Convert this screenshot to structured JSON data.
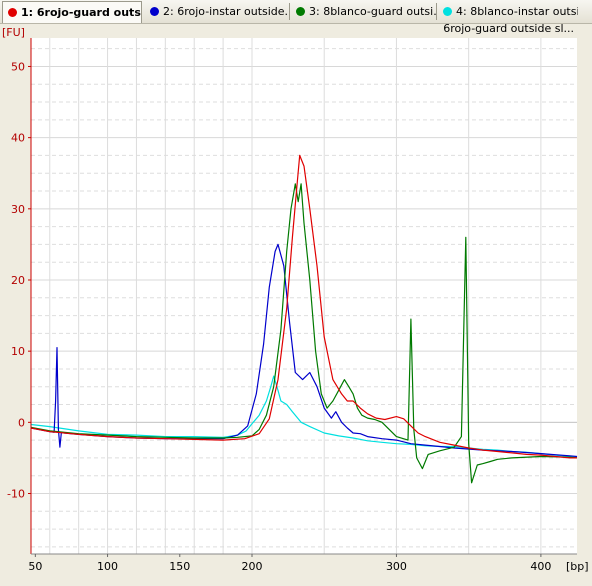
{
  "tabs": [
    {
      "label": "1: 6rojo-guard outs...",
      "color": "#e00000",
      "active": true
    },
    {
      "label": "2: 6rojo-instar outside...",
      "color": "#0000cc",
      "active": false
    },
    {
      "label": "3: 8blanco-guard outsi...",
      "color": "#007a00",
      "active": false
    },
    {
      "label": "4: 8blanco-instar outsi...",
      "color": "#00e0e0",
      "active": false
    }
  ],
  "subtitle": "6rojo-guard outside sl...",
  "chart_data": {
    "type": "line",
    "title": "",
    "ylabel": "[FU]",
    "xlabel": "[bp]",
    "xlim": [
      47,
      425
    ],
    "ylim": [
      -18.5,
      54
    ],
    "x_ticks": [
      50,
      100,
      150,
      200,
      300,
      400
    ],
    "x_tick_labels": [
      "50",
      "100",
      "150",
      "200",
      "300",
      "400"
    ],
    "y_ticks": [
      -10,
      0,
      10,
      20,
      30,
      40,
      50
    ],
    "y_tick_labels": [
      "-10",
      "0",
      "10",
      "20",
      "30",
      "40",
      "50"
    ],
    "grid": true,
    "series": [
      {
        "name": "1: 6rojo-guard outs...",
        "color": "#e00000",
        "x": [
          47,
          60,
          80,
          100,
          120,
          140,
          160,
          180,
          195,
          205,
          212,
          218,
          224,
          228,
          231,
          233,
          236,
          240,
          245,
          250,
          256,
          262,
          266,
          270,
          275,
          280,
          286,
          292,
          300,
          305,
          310,
          315,
          320,
          330,
          340,
          350,
          360,
          370,
          380,
          390,
          400,
          410,
          420,
          425
        ],
        "y": [
          -0.8,
          -1.3,
          -1.7,
          -2,
          -2.2,
          -2.3,
          -2.4,
          -2.5,
          -2.3,
          -1.6,
          0.5,
          6,
          16,
          26,
          33,
          37.5,
          36,
          30,
          22,
          12,
          6,
          4,
          3,
          3,
          2,
          1.2,
          0.6,
          0.4,
          0.8,
          0.5,
          -0.5,
          -1.5,
          -2,
          -2.8,
          -3.2,
          -3.6,
          -3.9,
          -4.1,
          -4.3,
          -4.5,
          -4.6,
          -4.8,
          -5,
          -5
        ]
      },
      {
        "name": "2: 6rojo-instar outside...",
        "color": "#0000cc",
        "x": [
          47,
          60,
          63,
          64,
          65,
          66,
          67,
          68,
          69,
          70,
          80,
          100,
          120,
          140,
          160,
          180,
          190,
          197,
          203,
          208,
          212,
          216,
          218,
          222,
          226,
          230,
          235,
          240,
          245,
          250,
          255,
          258,
          262,
          266,
          270,
          275,
          280,
          290,
          300,
          310,
          320,
          330,
          340,
          360,
          380,
          400,
          420,
          425
        ],
        "y": [
          -0.8,
          -1.3,
          -1.4,
          3,
          10.5,
          -1,
          -3.5,
          -1.5,
          -1.4,
          -1.5,
          -1.7,
          -2,
          -2.2,
          -2.3,
          -2.3,
          -2.3,
          -1.8,
          -0.5,
          4,
          11,
          19,
          24,
          25,
          22,
          14,
          7,
          6,
          7,
          5,
          2,
          0.6,
          1.5,
          0,
          -0.8,
          -1.5,
          -1.6,
          -2,
          -2.3,
          -2.5,
          -3,
          -3.2,
          -3.4,
          -3.6,
          -3.9,
          -4.1,
          -4.4,
          -4.7,
          -4.8
        ]
      },
      {
        "name": "3: 8blanco-guard outsi...",
        "color": "#007a00",
        "x": [
          47,
          60,
          80,
          100,
          120,
          140,
          160,
          180,
          190,
          200,
          205,
          210,
          215,
          220,
          224,
          227,
          230,
          232,
          234,
          236,
          240,
          244,
          248,
          252,
          256,
          260,
          264,
          267,
          270,
          273,
          276,
          280,
          285,
          290,
          300,
          308,
          310,
          312,
          314,
          318,
          322,
          330,
          340,
          345,
          348,
          350,
          352,
          356,
          360,
          365,
          370,
          380,
          400,
          420,
          425
        ],
        "y": [
          -0.7,
          -1.2,
          -1.6,
          -1.8,
          -2,
          -2.1,
          -2.2,
          -2.2,
          -2.1,
          -1.9,
          -1,
          1,
          5,
          13,
          24,
          30,
          33.5,
          31,
          33.5,
          28,
          20,
          10,
          4,
          2,
          3,
          4.5,
          6,
          5,
          4,
          2,
          1,
          0.6,
          0.4,
          0,
          -2,
          -2.5,
          14.5,
          -1,
          -5,
          -6.5,
          -4.5,
          -4,
          -3.5,
          -2,
          26,
          -3,
          -8.5,
          -6,
          -5.8,
          -5.5,
          -5.2,
          -5,
          -4.8,
          -4.9,
          -5
        ]
      },
      {
        "name": "4: 8blanco-instar outsi...",
        "color": "#00e0e0",
        "x": [
          47,
          60,
          80,
          100,
          120,
          140,
          160,
          180,
          190,
          196,
          200,
          205,
          210,
          213,
          215,
          218,
          220,
          224,
          228,
          234,
          240,
          250,
          260,
          270,
          280,
          290,
          300,
          310,
          320,
          330,
          340,
          350,
          360,
          370,
          380,
          390,
          400,
          410,
          420,
          425
        ],
        "y": [
          -0.3,
          -0.6,
          -1.2,
          -1.7,
          -1.8,
          -2,
          -2,
          -2.1,
          -1.8,
          -1.2,
          -0.2,
          1,
          3,
          5,
          6.5,
          4.5,
          3,
          2.5,
          1.5,
          0,
          -0.6,
          -1.5,
          -1.9,
          -2.2,
          -2.6,
          -2.8,
          -3,
          -3.1,
          -3.3,
          -3.4,
          -3.4,
          -3.6,
          -3.8,
          -3.9,
          -4.1,
          -4.2,
          -4.4,
          -4.6,
          -4.8,
          -4.9
        ]
      }
    ]
  }
}
